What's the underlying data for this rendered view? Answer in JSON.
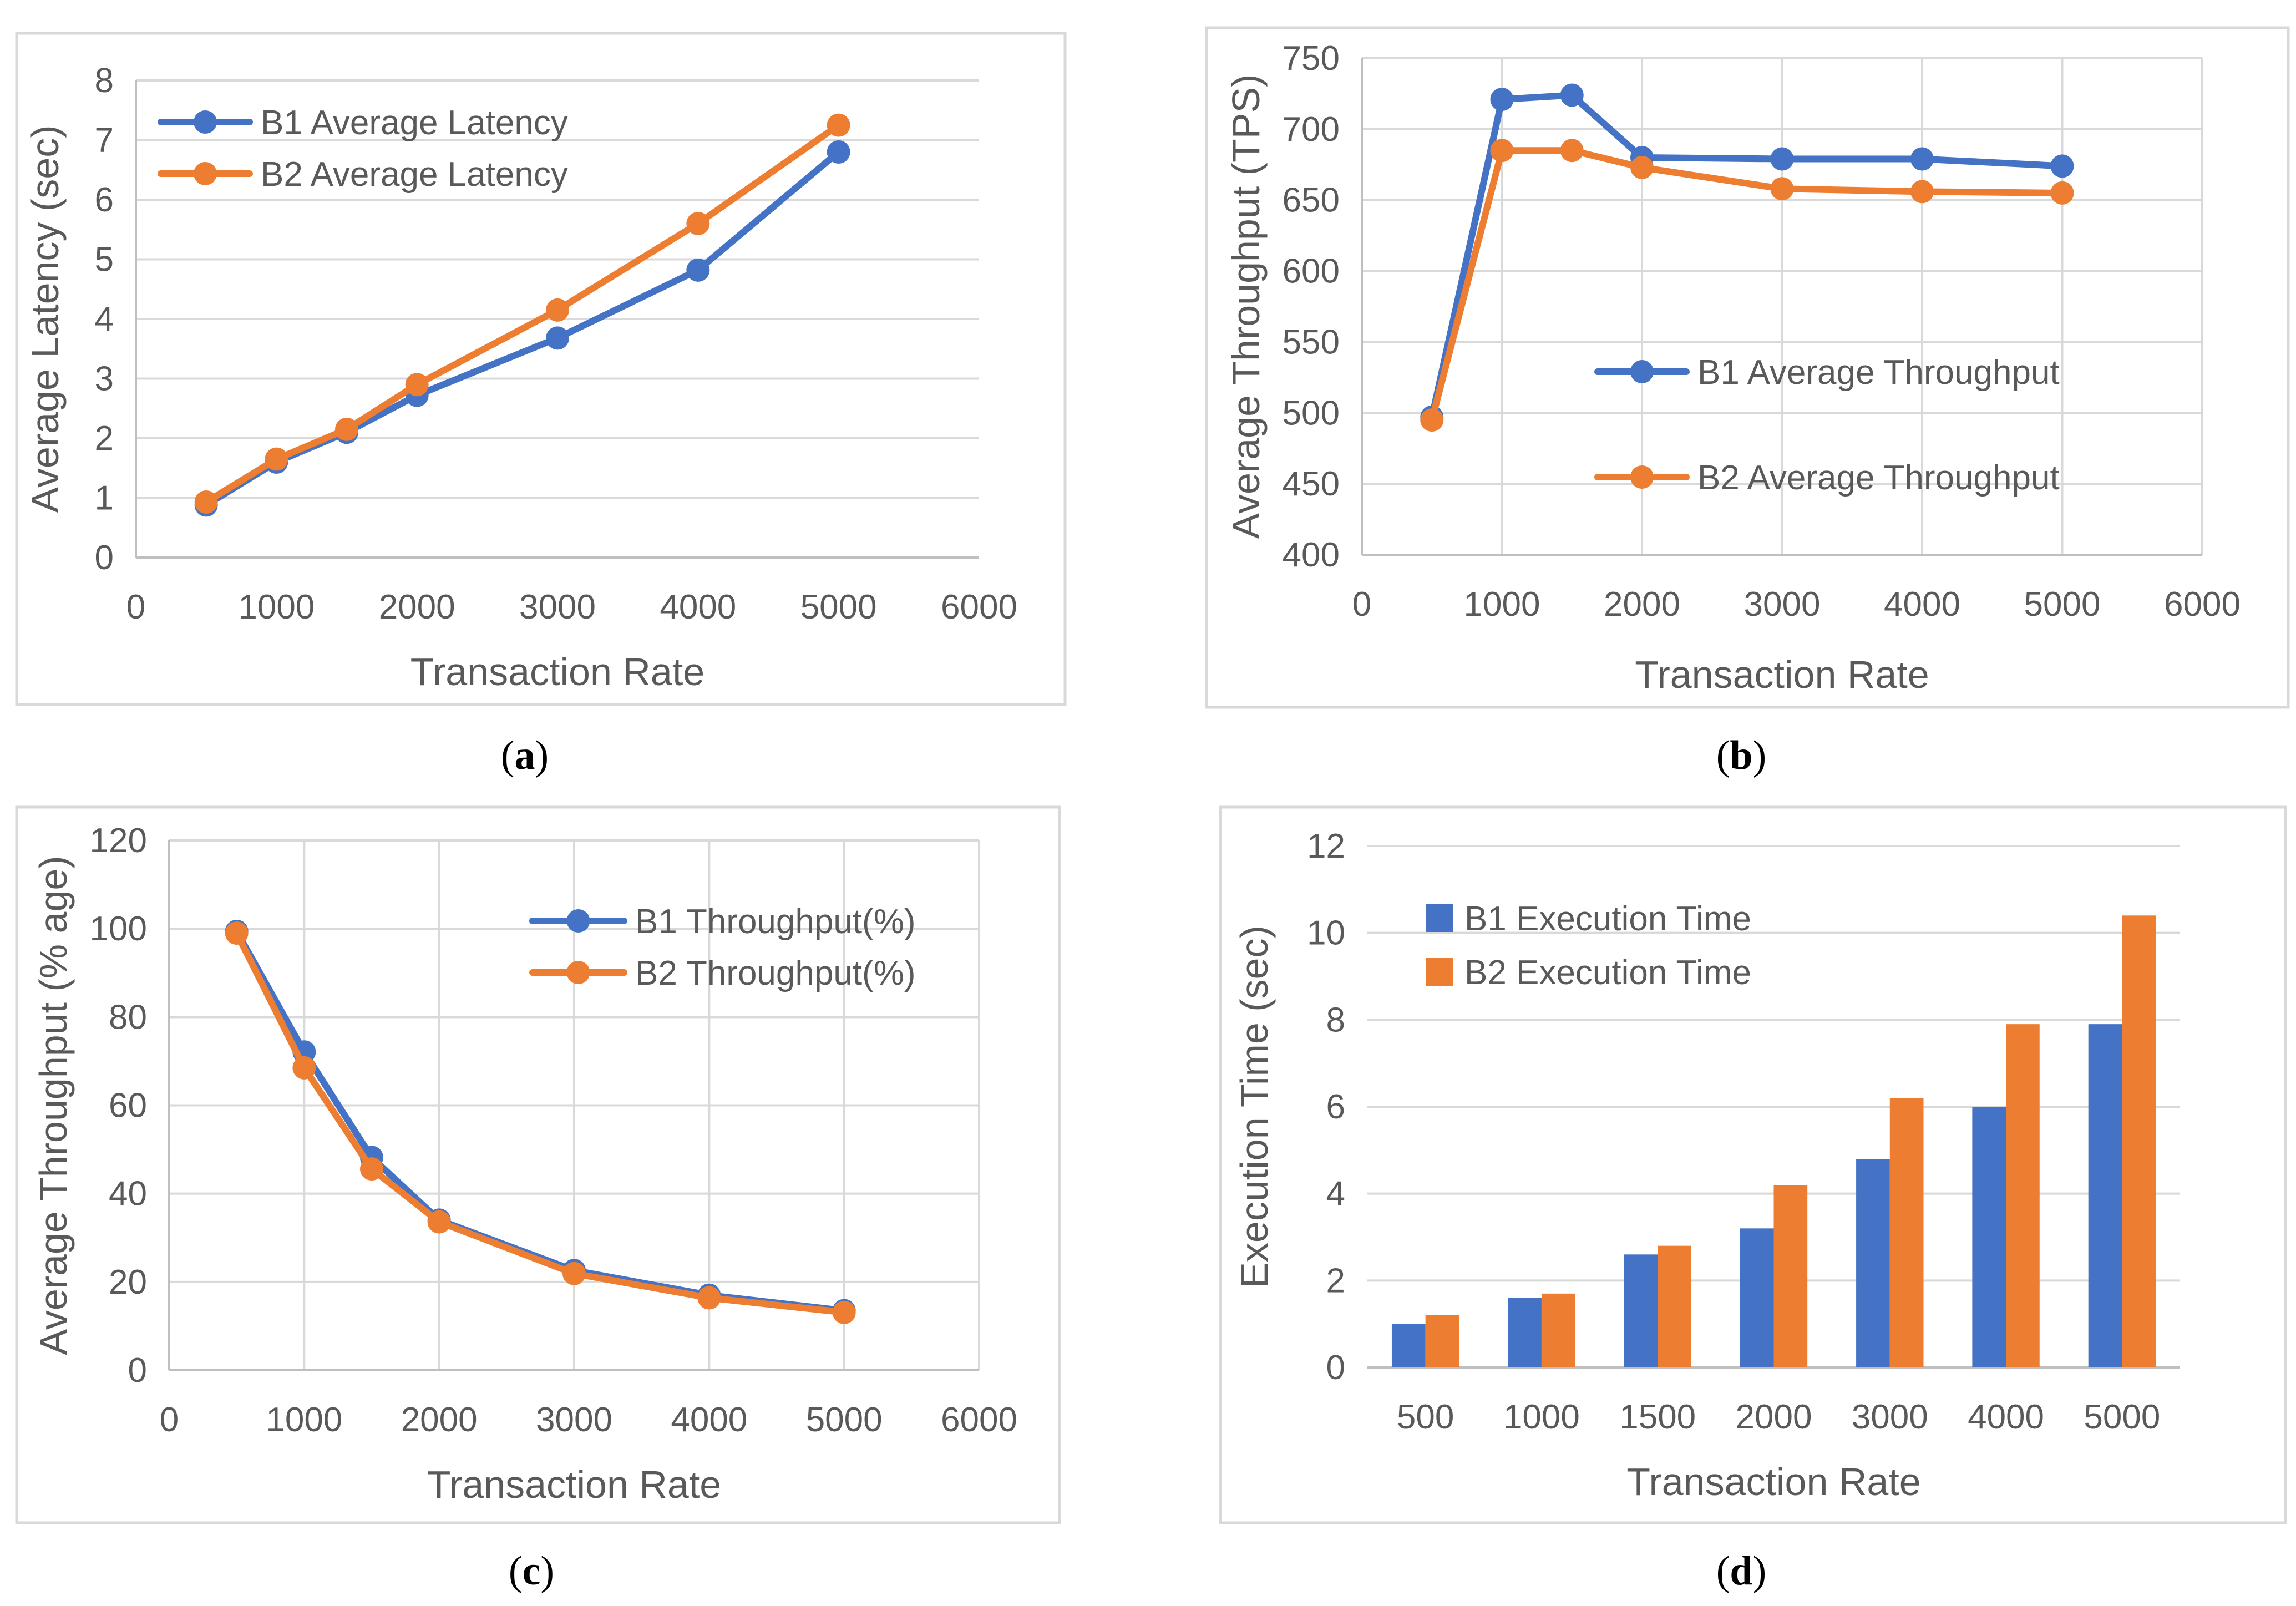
{
  "colors": {
    "b1": "#4472C4",
    "b2": "#ED7D31"
  },
  "panel_labels": [
    "a",
    "b",
    "c",
    "d"
  ],
  "chart_data": [
    {
      "id": "a",
      "type": "line",
      "xlabel": "Transaction Rate",
      "ylabel": "Average Latency (sec)",
      "xlim": [
        0,
        6000
      ],
      "xticks": [
        0,
        1000,
        2000,
        3000,
        4000,
        5000,
        6000
      ],
      "ylim": [
        0,
        8
      ],
      "yticks": [
        0,
        1,
        2,
        3,
        4,
        5,
        6,
        7,
        8
      ],
      "grid": "horizontal",
      "legend_position": "top-left",
      "x": [
        500,
        1000,
        1500,
        2000,
        3000,
        4000,
        5000
      ],
      "series": [
        {
          "name": "B1 Average Latency",
          "color": "#4472C4",
          "values": [
            0.88,
            1.6,
            2.1,
            2.72,
            3.68,
            4.82,
            6.8
          ]
        },
        {
          "name": "B2 Average Latency",
          "color": "#ED7D31",
          "values": [
            0.93,
            1.65,
            2.15,
            2.9,
            4.15,
            5.6,
            7.25
          ]
        }
      ]
    },
    {
      "id": "b",
      "type": "line",
      "xlabel": "Transaction Rate",
      "ylabel": "Average Throughput (TPS)",
      "xlim": [
        0,
        6000
      ],
      "xticks": [
        0,
        1000,
        2000,
        3000,
        4000,
        5000,
        6000
      ],
      "ylim": [
        400,
        750
      ],
      "yticks": [
        400,
        450,
        500,
        550,
        600,
        650,
        700,
        750
      ],
      "grid": "both",
      "legend_position": "center-right",
      "x": [
        500,
        1000,
        1500,
        2000,
        3000,
        4000,
        5000
      ],
      "series": [
        {
          "name": "B1 Average Throughput",
          "color": "#4472C4",
          "values": [
            497,
            721,
            724,
            680,
            679,
            679,
            674
          ]
        },
        {
          "name": "B2 Average Throughput",
          "color": "#ED7D31",
          "values": [
            495,
            685,
            685,
            673,
            658,
            656,
            655
          ]
        }
      ]
    },
    {
      "id": "c",
      "type": "line",
      "xlabel": "Transaction Rate",
      "ylabel": "Average Throughput (% age)",
      "xlim": [
        0,
        6000
      ],
      "xticks": [
        0,
        1000,
        2000,
        3000,
        4000,
        5000,
        6000
      ],
      "ylim": [
        0,
        120
      ],
      "yticks": [
        0,
        20,
        40,
        60,
        80,
        100,
        120
      ],
      "grid": "both",
      "legend_position": "top-right",
      "x": [
        500,
        1000,
        1500,
        2000,
        3000,
        4000,
        5000
      ],
      "series": [
        {
          "name": "B1 Throughput(%)",
          "color": "#4472C4",
          "values": [
            99.4,
            72.1,
            48.2,
            34.0,
            22.6,
            17.0,
            13.5
          ]
        },
        {
          "name": "B2 Throughput(%)",
          "color": "#ED7D31",
          "values": [
            99.0,
            68.5,
            45.6,
            33.6,
            21.9,
            16.4,
            13.1
          ]
        }
      ]
    },
    {
      "id": "d",
      "type": "bar",
      "xlabel": "Transaction Rate",
      "ylabel": "Execution Time (sec)",
      "categories": [
        "500",
        "1000",
        "1500",
        "2000",
        "3000",
        "4000",
        "5000"
      ],
      "ylim": [
        0,
        12
      ],
      "yticks": [
        0,
        2,
        4,
        6,
        8,
        10,
        12
      ],
      "grid": "horizontal",
      "legend_position": "top-left",
      "series": [
        {
          "name": "B1 Execution Time",
          "color": "#4472C4",
          "values": [
            1.0,
            1.6,
            2.6,
            3.2,
            4.8,
            6.0,
            7.9
          ]
        },
        {
          "name": "B2 Execution Time",
          "color": "#ED7D31",
          "values": [
            1.2,
            1.7,
            2.8,
            4.2,
            6.2,
            7.9,
            10.4
          ]
        }
      ]
    }
  ]
}
